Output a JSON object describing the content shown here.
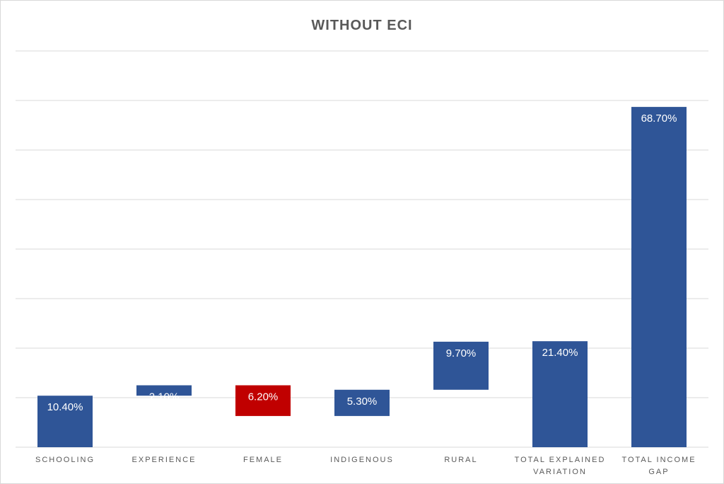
{
  "chart_data": {
    "type": "bar",
    "subtype": "waterfall",
    "title": "WITHOUT  ECI",
    "categories": [
      [
        "SCHOOLING"
      ],
      [
        "EXPERIENCE"
      ],
      [
        "FEMALE"
      ],
      [
        "INDIGENOUS"
      ],
      [
        "RURAL"
      ],
      [
        "TOTAL EXPLAINED",
        "VARIATION"
      ],
      [
        "TOTAL INCOME",
        "GAP"
      ]
    ],
    "values": [
      10.4,
      2.1,
      -6.2,
      5.3,
      9.7,
      21.4,
      68.7
    ],
    "is_total": [
      false,
      false,
      false,
      false,
      false,
      true,
      true
    ],
    "data_labels": [
      "10.40%",
      "2.10%",
      "6.20%",
      "5.30%",
      "9.70%",
      "21.40%",
      "68.70%"
    ],
    "ylim": [
      0,
      80
    ],
    "ytick_step": 10,
    "grid": true,
    "legend": "none",
    "xlabel": "",
    "ylabel": "",
    "colors": {
      "increase": "#2f5597",
      "decrease": "#c00000",
      "total": "#2f5597",
      "grid": "#d9d9d9"
    }
  }
}
